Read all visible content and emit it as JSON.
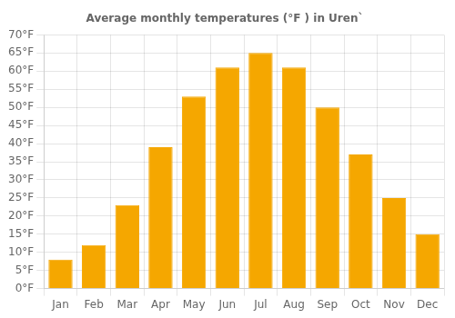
{
  "chart_data": {
    "type": "bar",
    "title": "Average monthly temperatures (°F ) in Uren`",
    "categories": [
      "Jan",
      "Feb",
      "Mar",
      "Apr",
      "May",
      "Jun",
      "Jul",
      "Aug",
      "Sep",
      "Oct",
      "Nov",
      "Dec"
    ],
    "values": [
      8,
      12,
      23,
      39,
      53,
      61,
      65,
      61,
      50,
      37,
      25,
      15
    ],
    "color": "#F5A700",
    "ylim": [
      0,
      70
    ],
    "yticks": [
      {
        "value": 0,
        "label": "0°F"
      },
      {
        "value": 5,
        "label": "5°F"
      },
      {
        "value": 10,
        "label": "10°F"
      },
      {
        "value": 15,
        "label": "15°F"
      },
      {
        "value": 20,
        "label": "20°F"
      },
      {
        "value": 25,
        "label": "25°F"
      },
      {
        "value": 30,
        "label": "30°F"
      },
      {
        "value": 35,
        "label": "35°F"
      },
      {
        "value": 40,
        "label": "40°F"
      },
      {
        "value": 45,
        "label": "45°F"
      },
      {
        "value": 50,
        "label": "50°F"
      },
      {
        "value": 55,
        "label": "55°F"
      },
      {
        "value": 60,
        "label": "60°F"
      },
      {
        "value": 65,
        "label": "65°F"
      },
      {
        "value": 70,
        "label": "70°F"
      }
    ],
    "grid": true
  }
}
